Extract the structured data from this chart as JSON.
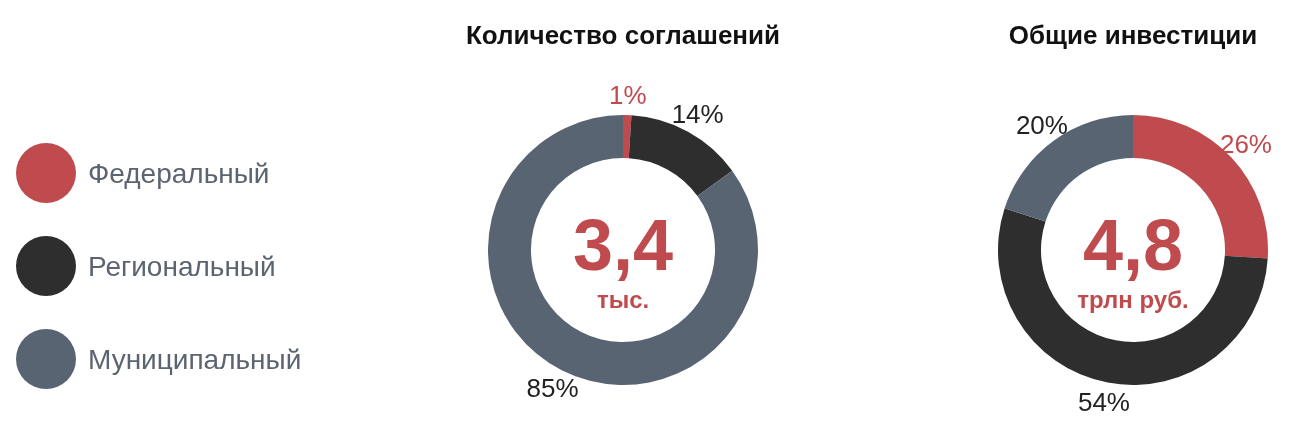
{
  "chart_data": [
    {
      "type": "donut",
      "title": "Количество соглашений",
      "categories": [
        "Федеральный",
        "Региональный",
        "Муниципальный"
      ],
      "values": [
        1,
        14,
        85
      ],
      "value_labels": [
        "1%",
        "14%",
        "85%"
      ],
      "colors": [
        "#c04b4e",
        "#2e2e2e",
        "#596473"
      ],
      "legend": "left",
      "annotations": [
        "3,4",
        "тыс."
      ]
    },
    {
      "type": "donut",
      "title": "Общие инвестиции",
      "categories": [
        null,
        null,
        null
      ],
      "values": [
        26,
        54,
        20
      ],
      "value_labels": [
        "26%",
        "54%",
        "20%"
      ],
      "colors": [
        "#c04b4e",
        "#2e2e2e",
        "#596473"
      ],
      "annotations": [
        "4,8",
        "трлн руб."
      ]
    }
  ]
}
